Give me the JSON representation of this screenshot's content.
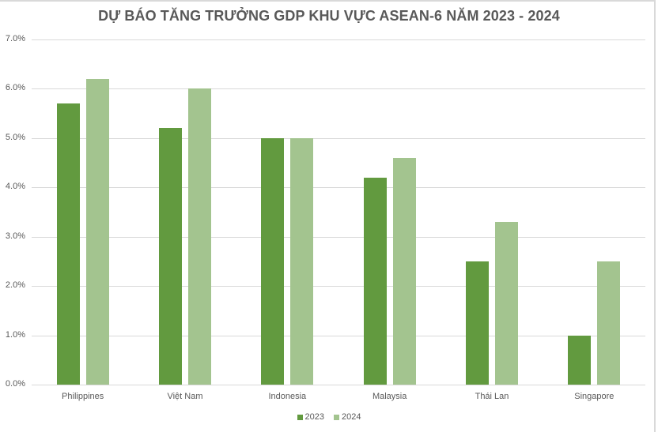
{
  "chart_data": {
    "type": "bar",
    "title": "DỰ BÁO TĂNG TRƯỞNG GDP KHU VỰC ASEAN-6 NĂM 2023 - 2024",
    "xlabel": "",
    "ylabel": "",
    "categories": [
      "Philippines",
      "Việt Nam",
      "Indonesia",
      "Malaysia",
      "Thái Lan",
      "Singapore"
    ],
    "series": [
      {
        "name": "2023",
        "color": "#629a3f",
        "values": [
          5.7,
          5.2,
          5.0,
          4.2,
          2.5,
          1.0
        ]
      },
      {
        "name": "2024",
        "color": "#a3c48f",
        "values": [
          6.2,
          6.0,
          5.0,
          4.6,
          3.3,
          2.5
        ]
      }
    ],
    "ylim": [
      0,
      7
    ],
    "yticks": [
      "0.0%",
      "1.0%",
      "2.0%",
      "3.0%",
      "4.0%",
      "5.0%",
      "6.0%",
      "7.0%"
    ],
    "grid": true,
    "legend_position": "bottom"
  }
}
